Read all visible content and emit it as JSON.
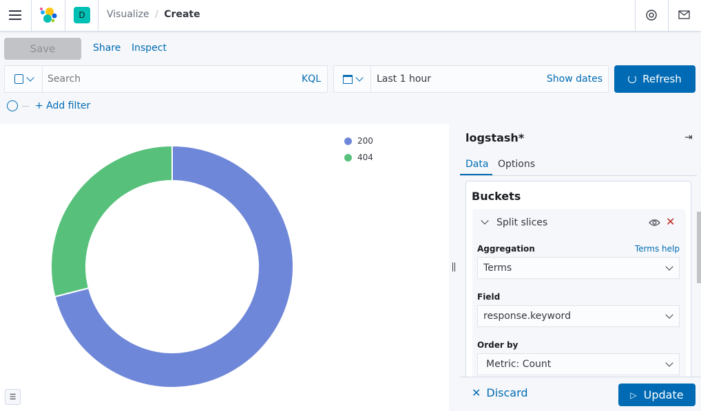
{
  "header": {
    "breadcrumbs": [
      "Visualize",
      "Create"
    ],
    "space_initial": "D",
    "space_color": "#00bfb3"
  },
  "toolbar": {
    "save": "Save",
    "share": "Share",
    "inspect": "Inspect"
  },
  "query": {
    "placeholder": "Search",
    "language": "KQL",
    "time_range": "Last 1 hour",
    "show_dates": "Show dates",
    "refresh": "Refresh",
    "add_filter": "+ Add filter"
  },
  "chart_data": {
    "type": "pie",
    "donut": true,
    "categories": [
      "200",
      "404"
    ],
    "values": [
      0.71,
      0.29
    ],
    "colors": [
      "#6f87d8",
      "#57c17b"
    ],
    "legend": "top-right"
  },
  "panel": {
    "index": "logstash*",
    "tabs": [
      "Data",
      "Options"
    ],
    "active_tab": "Data",
    "section": "Buckets",
    "bucket_title": "Split slices",
    "aggregation_label": "Aggregation",
    "terms_help": "Terms help",
    "aggregation_value": "Terms",
    "field_label": "Field",
    "field_value": "response.keyword",
    "order_label": "Order by",
    "order_value": "Metric: Count",
    "discard": "Discard",
    "update": "Update"
  }
}
